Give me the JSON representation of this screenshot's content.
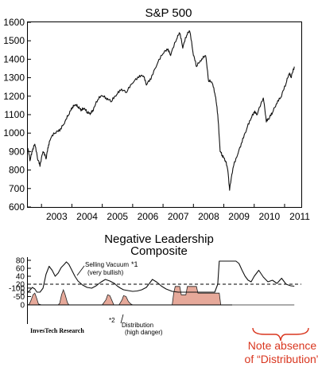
{
  "chart_data": [
    {
      "type": "line",
      "title": "S&P 500",
      "xlabel": "",
      "ylabel": "",
      "x_ticks": [
        "2003",
        "2004",
        "2005",
        "2006",
        "2007",
        "2008",
        "2009",
        "2010",
        "2011"
      ],
      "y_ticks": [
        600,
        700,
        800,
        900,
        1000,
        1100,
        1200,
        1300,
        1400,
        1500,
        1600
      ],
      "xlim": [
        2002.55,
        2011.55
      ],
      "ylim": [
        600,
        1600
      ],
      "grid": false,
      "series": [
        {
          "x": [
            2002.55,
            2002.62,
            2002.7,
            2002.78,
            2002.87,
            2002.95,
            2003.05,
            2003.15,
            2003.22,
            2003.3,
            2003.45,
            2003.6,
            2003.75,
            2003.9,
            2004.0,
            2004.1,
            2004.2,
            2004.3,
            2004.4,
            2004.5,
            2004.6,
            2004.7,
            2004.85,
            2005.0,
            2005.15,
            2005.3,
            2005.45,
            2005.6,
            2005.8,
            2006.0,
            2006.2,
            2006.35,
            2006.45,
            2006.6,
            2006.8,
            2007.0,
            2007.15,
            2007.25,
            2007.45,
            2007.55,
            2007.65,
            2007.78,
            2007.88,
            2008.0,
            2008.1,
            2008.25,
            2008.4,
            2008.5,
            2008.62,
            2008.72,
            2008.8,
            2008.88,
            2008.96,
            2009.05,
            2009.13,
            2009.19,
            2009.3,
            2009.45,
            2009.6,
            2009.75,
            2009.9,
            2010.0,
            2010.1,
            2010.3,
            2010.4,
            2010.5,
            2010.6,
            2010.75,
            2010.9,
            2011.05,
            2011.15,
            2011.22,
            2011.32
          ],
          "values": [
            920,
            850,
            900,
            940,
            860,
            820,
            900,
            860,
            920,
            970,
            1000,
            1010,
            1050,
            1100,
            1130,
            1150,
            1140,
            1120,
            1130,
            1110,
            1100,
            1120,
            1180,
            1200,
            1180,
            1170,
            1200,
            1230,
            1220,
            1270,
            1300,
            1310,
            1260,
            1290,
            1370,
            1430,
            1450,
            1420,
            1510,
            1540,
            1460,
            1530,
            1550,
            1420,
            1360,
            1390,
            1420,
            1280,
            1270,
            1200,
            1100,
            900,
            870,
            850,
            800,
            690,
            810,
            880,
            950,
            1020,
            1080,
            1110,
            1100,
            1190,
            1060,
            1080,
            1110,
            1160,
            1200,
            1270,
            1320,
            1300,
            1360
          ]
        }
      ]
    },
    {
      "type": "area",
      "title": "Negative Leadership\nComposite",
      "title_lines": [
        "Negative Leadership",
        "Composite"
      ],
      "xlabel": "",
      "ylabel": "",
      "xlim": [
        2002.55,
        2011.55
      ],
      "y_ticks_upper": [
        0,
        20,
        40,
        60,
        80
      ],
      "y_ticks_lower": [
        0,
        -50,
        -100
      ],
      "reference_line": 20,
      "grid": false,
      "series": [
        {
          "x": [
            2002.55,
            2002.62,
            2002.7,
            2002.78,
            2002.85,
            2002.95,
            2003.05,
            2003.15,
            2003.25,
            2003.35,
            2003.45,
            2003.55,
            2003.65,
            2003.75,
            2003.82,
            2003.9,
            2004.0,
            2004.1,
            2004.2,
            2004.35,
            2004.5,
            2004.65,
            2004.8,
            2004.95,
            2005.1,
            2005.25,
            2005.4,
            2005.5,
            2005.6,
            2005.7,
            2005.85,
            2006.0,
            2006.15,
            2006.3,
            2006.45,
            2006.55,
            2006.65,
            2006.8,
            2006.95,
            2007.1,
            2007.3,
            2007.5,
            2007.7,
            2007.9,
            2008.1,
            2008.3,
            2008.5,
            2008.7,
            2008.8,
            2008.85,
            2009.2,
            2009.3,
            2009.4,
            2009.5,
            2009.6,
            2009.7,
            2009.8,
            2009.9,
            2010.0,
            2010.15,
            2010.3,
            2010.45,
            2010.6,
            2010.75,
            2010.9,
            2011.05,
            2011.2,
            2011.32
          ],
          "values": [
            0,
            5,
            12,
            8,
            0,
            0,
            10,
            45,
            65,
            55,
            40,
            48,
            62,
            70,
            76,
            70,
            55,
            40,
            28,
            18,
            12,
            10,
            16,
            25,
            32,
            28,
            22,
            15,
            10,
            6,
            4,
            2,
            3,
            6,
            12,
            22,
            32,
            25,
            15,
            8,
            2,
            0,
            0,
            0,
            0,
            0,
            0,
            0,
            20,
            78,
            78,
            78,
            78,
            72,
            55,
            40,
            30,
            26,
            40,
            55,
            38,
            26,
            30,
            22,
            35,
            20,
            16,
            15
          ]
        },
        {
          "x": [
            2002.55,
            2002.6,
            2002.66,
            2002.72,
            2002.78,
            2002.84,
            2002.9,
            2003.0,
            2003.3,
            2003.55,
            2003.6,
            2003.66,
            2003.72,
            2003.78,
            2003.85,
            2003.9,
            2004.0,
            2004.5,
            2005.0,
            2005.12,
            2005.18,
            2005.25,
            2005.32,
            2005.38,
            2005.45,
            2005.55,
            2005.65,
            2005.7,
            2005.78,
            2005.86,
            2005.94,
            2006.0,
            2006.5,
            2007.0,
            2007.3,
            2007.35,
            2007.4,
            2007.55,
            2007.6,
            2007.75,
            2007.8,
            2008.1,
            2008.15,
            2008.85,
            2008.9,
            2011.32
          ],
          "values": [
            0,
            -5,
            -30,
            -60,
            -70,
            -40,
            -5,
            0,
            0,
            0,
            -10,
            -60,
            -90,
            -60,
            -15,
            0,
            0,
            0,
            0,
            -30,
            -60,
            -55,
            -25,
            0,
            0,
            0,
            -30,
            -55,
            -50,
            -20,
            -5,
            0,
            0,
            0,
            0,
            -70,
            -110,
            -110,
            -60,
            -60,
            -110,
            -110,
            -70,
            -70,
            0,
            0
          ]
        }
      ],
      "annotations": [
        {
          "text": "Selling Vacuum",
          "sup": "*1"
        },
        {
          "text": "(very bullish)"
        },
        {
          "text": "Distribution",
          "sup": "*2"
        },
        {
          "text": "(high danger)"
        }
      ]
    }
  ],
  "credit": "InvesTech Research",
  "note": [
    "Note absence",
    "of “Distribution”"
  ],
  "colors": {
    "line": "#111111",
    "distribution_fill": "#e6a99a",
    "distribution_stroke": "#222222",
    "note": "#d9361f"
  }
}
